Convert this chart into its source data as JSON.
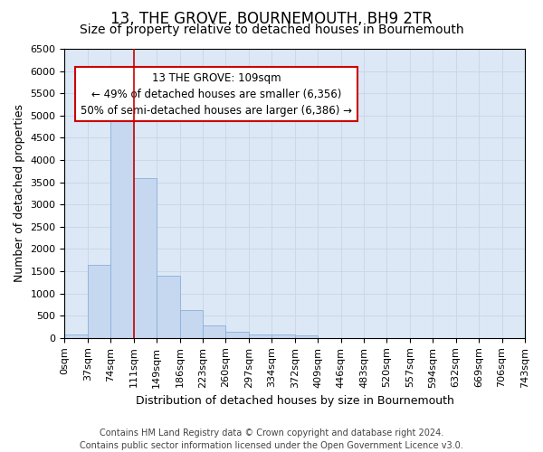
{
  "title": "13, THE GROVE, BOURNEMOUTH, BH9 2TR",
  "subtitle": "Size of property relative to detached houses in Bournemouth",
  "xlabel": "Distribution of detached houses by size in Bournemouth",
  "ylabel": "Number of detached properties",
  "footer_line1": "Contains HM Land Registry data © Crown copyright and database right 2024.",
  "footer_line2": "Contains public sector information licensed under the Open Government Licence v3.0.",
  "bar_values": [
    75,
    1650,
    5050,
    3600,
    1400,
    620,
    290,
    130,
    85,
    70,
    60,
    0,
    0,
    0,
    0,
    0,
    0,
    0,
    0,
    0
  ],
  "x_labels": [
    "0sqm",
    "37sqm",
    "74sqm",
    "111sqm",
    "149sqm",
    "186sqm",
    "223sqm",
    "260sqm",
    "297sqm",
    "334sqm",
    "372sqm",
    "409sqm",
    "446sqm",
    "483sqm",
    "520sqm",
    "557sqm",
    "594sqm",
    "632sqm",
    "669sqm",
    "706sqm",
    "743sqm"
  ],
  "bar_color": "#c5d8f0",
  "bar_edge_color": "#8ab0d8",
  "vline_x": 3.0,
  "vline_color": "#cc0000",
  "annotation_text": "13 THE GROVE: 109sqm\n← 49% of detached houses are smaller (6,356)\n50% of semi-detached houses are larger (6,386) →",
  "annotation_box_color": "#ffffff",
  "annotation_box_edge": "#cc0000",
  "ylim": [
    0,
    6500
  ],
  "yticks": [
    0,
    500,
    1000,
    1500,
    2000,
    2500,
    3000,
    3500,
    4000,
    4500,
    5000,
    5500,
    6000,
    6500
  ],
  "grid_color": "#c8d4e8",
  "bg_color": "#dce8f5",
  "title_fontsize": 12,
  "subtitle_fontsize": 10,
  "axis_label_fontsize": 9,
  "tick_fontsize": 8,
  "footer_fontsize": 7
}
